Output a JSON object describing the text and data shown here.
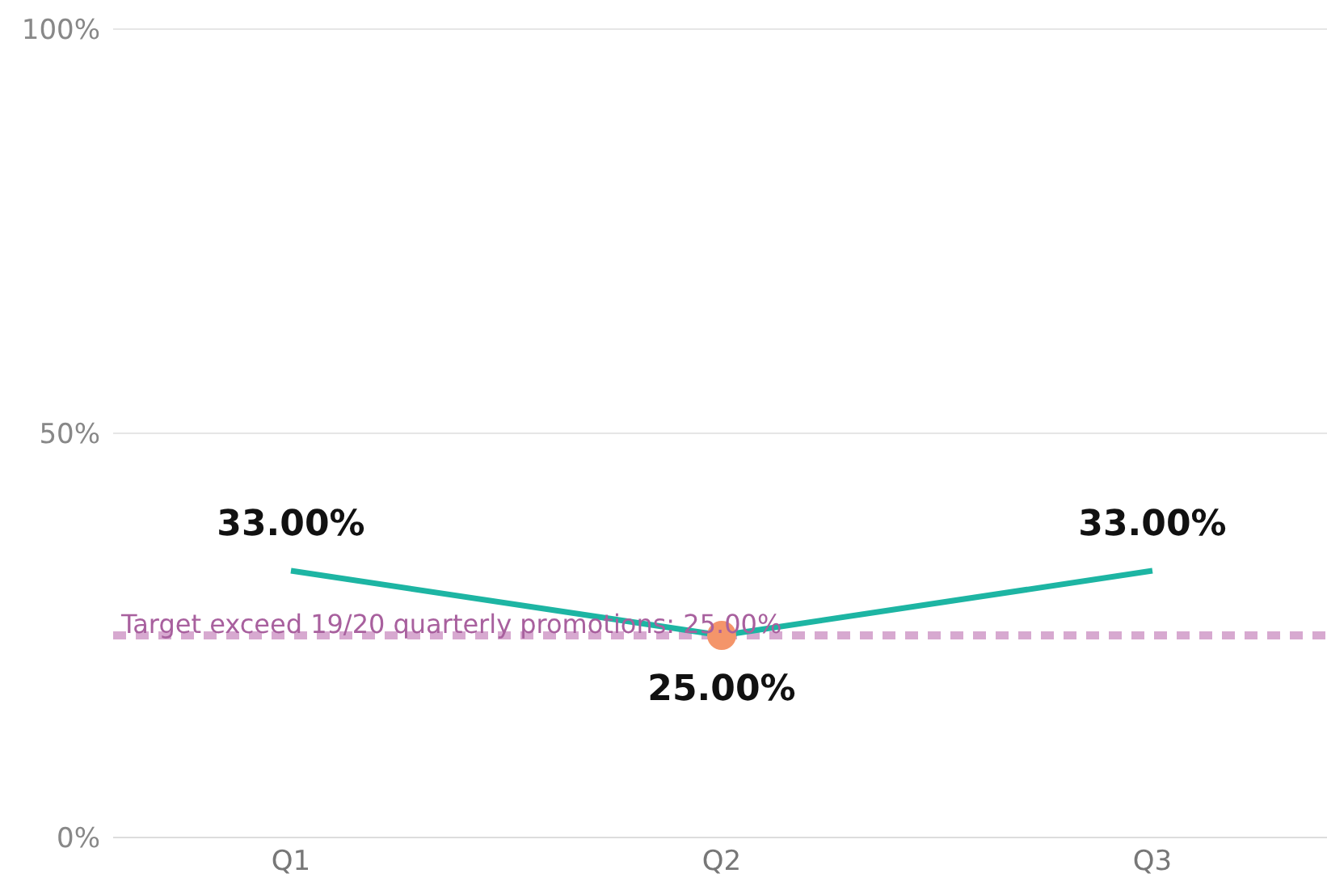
{
  "chart_data": {
    "type": "line",
    "categories": [
      "Q1",
      "Q2",
      "Q3"
    ],
    "series": [
      {
        "color": "#1db5a3",
        "values": [
          33,
          25,
          33
        ],
        "value_labels": [
          "33.00%",
          "25.00%",
          "33.00%"
        ]
      },
      {
        "type": "scatter",
        "marker": "circle",
        "color": "#f4956a",
        "x": [
          "Q2"
        ],
        "values": [
          25
        ]
      }
    ],
    "ylim": [
      0,
      100
    ],
    "yticks": [
      {
        "value": 0,
        "label": "0%"
      },
      {
        "value": 50,
        "label": "50%"
      },
      {
        "value": 100,
        "label": "100%"
      }
    ],
    "grid": "y",
    "legend": false,
    "marker": "none",
    "line_style": "solid",
    "ref_lines": [
      {
        "axis": "y",
        "value": 25,
        "label": "Target exceed 19/20 quarterly promotions: 25.00%",
        "color": "#d7a9d0",
        "line_style": "dashed"
      }
    ]
  }
}
